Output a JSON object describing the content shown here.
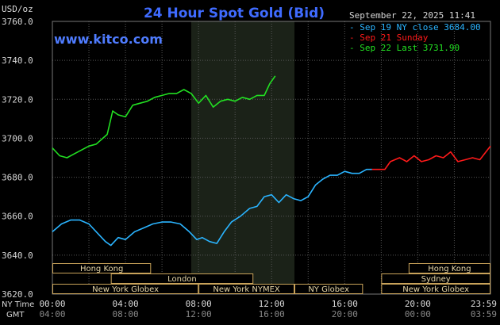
{
  "colors": {
    "background": "#000000",
    "grid": "#555555",
    "axis_text": "#d8d8d8",
    "title": "#3f6bff",
    "watermark": "#4f7cff",
    "session_shade": "#1b2218",
    "market_box": "#c9a35a",
    "market_text": "#e6d6a8",
    "sep19": "#2ab4ff",
    "sep21": "#ff1a1a",
    "sep22": "#22e022"
  },
  "header": {
    "title": "24 Hour Spot Gold (Bid)",
    "unit": "USD/oz",
    "datetime": "September 22, 2025 11:41",
    "watermark": "www.kitco.com"
  },
  "legend": [
    {
      "text": "- Sep 19 NY close 3684.00",
      "color_key": "sep19"
    },
    {
      "text": "- Sep 21 Sunday",
      "color_key": "sep21"
    },
    {
      "text": "- Sep 22 Last 3731.90",
      "color_key": "sep22"
    }
  ],
  "axis": {
    "ny_time_label": "NY Time",
    "gmt_label": "GMT",
    "ny_ticks": [
      "00:00",
      "04:00",
      "08:00",
      "12:00",
      "16:00",
      "20:00",
      "23:59"
    ],
    "gmt_ticks": [
      "04:00",
      "08:00",
      "12:00",
      "16:00",
      "20:00",
      "00:00",
      "03:59"
    ]
  },
  "markets": [
    {
      "label": "Hong Kong",
      "row": 0,
      "start": 0.0,
      "end": 5.4
    },
    {
      "label": "London",
      "row": 1,
      "start": 3.2,
      "end": 11.0
    },
    {
      "label": "New York Globex",
      "row": 2,
      "start": 0.0,
      "end": 8.0
    },
    {
      "label": "New York NYMEX",
      "row": 2,
      "start": 8.0,
      "end": 13.25
    },
    {
      "label": "NY Globex",
      "row": 2,
      "start": 13.25,
      "end": 17.0
    },
    {
      "label": "Hong Kong",
      "row": 0,
      "start": 19.5,
      "end": 23.98
    },
    {
      "label": "Sydney",
      "row": 1,
      "start": 18.0,
      "end": 23.98
    },
    {
      "label": "New York Globex",
      "row": 2,
      "start": 18.0,
      "end": 23.98
    }
  ],
  "chart_data": {
    "type": "line",
    "title": "24 Hour Spot Gold (Bid)",
    "ylabel": "USD/oz",
    "xlim": [
      0,
      23.98
    ],
    "ylim": [
      3620,
      3760
    ],
    "yticks": [
      3620.0,
      3640.0,
      3660.0,
      3680.0,
      3700.0,
      3720.0,
      3740.0,
      3760.0
    ],
    "grid": true,
    "shaded_session_hours": [
      7.6,
      13.25
    ],
    "series": [
      {
        "name": "Sep 19 NY close 3684.00",
        "color_key": "sep19",
        "points": [
          [
            0.0,
            3652
          ],
          [
            0.5,
            3656
          ],
          [
            1.0,
            3658
          ],
          [
            1.5,
            3658
          ],
          [
            2.0,
            3656
          ],
          [
            2.5,
            3651
          ],
          [
            2.9,
            3647
          ],
          [
            3.2,
            3645
          ],
          [
            3.6,
            3649
          ],
          [
            4.0,
            3648
          ],
          [
            4.5,
            3652
          ],
          [
            5.0,
            3654
          ],
          [
            5.5,
            3656
          ],
          [
            6.0,
            3657
          ],
          [
            6.5,
            3657
          ],
          [
            7.0,
            3656
          ],
          [
            7.5,
            3652
          ],
          [
            7.9,
            3648
          ],
          [
            8.2,
            3649
          ],
          [
            8.6,
            3647
          ],
          [
            9.0,
            3646
          ],
          [
            9.4,
            3652
          ],
          [
            9.8,
            3657
          ],
          [
            10.3,
            3660
          ],
          [
            10.8,
            3664
          ],
          [
            11.2,
            3665
          ],
          [
            11.6,
            3670
          ],
          [
            12.0,
            3671
          ],
          [
            12.4,
            3667
          ],
          [
            12.8,
            3671
          ],
          [
            13.2,
            3669
          ],
          [
            13.6,
            3668
          ],
          [
            14.0,
            3670
          ],
          [
            14.4,
            3676
          ],
          [
            14.8,
            3679
          ],
          [
            15.2,
            3681
          ],
          [
            15.6,
            3681
          ],
          [
            16.0,
            3683
          ],
          [
            16.4,
            3682
          ],
          [
            16.8,
            3682
          ],
          [
            17.2,
            3684
          ],
          [
            17.5,
            3684
          ]
        ]
      },
      {
        "name": "Sep 21 Sunday",
        "color_key": "sep21",
        "points": [
          [
            17.5,
            3684
          ],
          [
            18.2,
            3684
          ],
          [
            18.5,
            3688
          ],
          [
            19.0,
            3690
          ],
          [
            19.4,
            3688
          ],
          [
            19.8,
            3691
          ],
          [
            20.2,
            3688
          ],
          [
            20.6,
            3689
          ],
          [
            21.0,
            3691
          ],
          [
            21.4,
            3690
          ],
          [
            21.8,
            3693
          ],
          [
            22.2,
            3688
          ],
          [
            22.6,
            3689
          ],
          [
            23.0,
            3690
          ],
          [
            23.4,
            3689
          ],
          [
            23.98,
            3696
          ]
        ]
      },
      {
        "name": "Sep 22 Last 3731.90",
        "color_key": "sep22",
        "points": [
          [
            0.0,
            3695
          ],
          [
            0.4,
            3691
          ],
          [
            0.8,
            3690
          ],
          [
            1.2,
            3692
          ],
          [
            1.6,
            3694
          ],
          [
            2.0,
            3696
          ],
          [
            2.4,
            3697
          ],
          [
            3.0,
            3702
          ],
          [
            3.3,
            3714
          ],
          [
            3.6,
            3712
          ],
          [
            4.0,
            3711
          ],
          [
            4.4,
            3717
          ],
          [
            4.8,
            3718
          ],
          [
            5.2,
            3719
          ],
          [
            5.6,
            3721
          ],
          [
            6.0,
            3722
          ],
          [
            6.4,
            3723
          ],
          [
            6.8,
            3723
          ],
          [
            7.2,
            3725
          ],
          [
            7.6,
            3723
          ],
          [
            8.0,
            3718
          ],
          [
            8.4,
            3722
          ],
          [
            8.8,
            3716
          ],
          [
            9.2,
            3719
          ],
          [
            9.6,
            3720
          ],
          [
            10.0,
            3719
          ],
          [
            10.4,
            3721
          ],
          [
            10.8,
            3720
          ],
          [
            11.2,
            3722
          ],
          [
            11.6,
            3722
          ],
          [
            11.9,
            3728
          ],
          [
            12.2,
            3732
          ]
        ]
      }
    ]
  }
}
